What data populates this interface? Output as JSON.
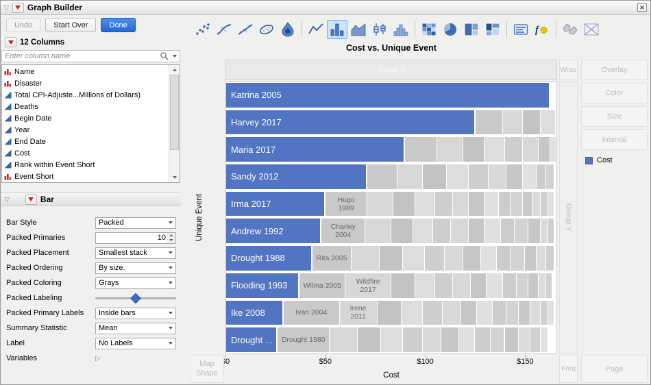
{
  "window": {
    "title": "Graph Builder"
  },
  "glyphs": {
    "open_disclosure": "▽",
    "collapsed_disclosure": "▷"
  },
  "toolbar": {
    "undo": "Undo",
    "start_over": "Start Over",
    "done": "Done"
  },
  "palette": {
    "selected": "bar",
    "groups": [
      [
        "points",
        "smoother",
        "line-of-fit",
        "ellipse",
        "contour"
      ],
      [
        "line",
        "bar",
        "area",
        "box-plot",
        "histogram"
      ],
      [
        "heatmap",
        "pie",
        "treemap",
        "mosaic"
      ],
      [
        "caption-box",
        "formula"
      ],
      [
        "map-shapes",
        "parallel-plot"
      ]
    ]
  },
  "columns_panel": {
    "header": "12 Columns",
    "search_placeholder": "Enter column name",
    "items": [
      {
        "label": "Name",
        "type": "nominal"
      },
      {
        "label": "Disaster",
        "type": "nominal"
      },
      {
        "label": "Total CPI-Adjuste...Millions of Dollars)",
        "type": "continuous"
      },
      {
        "label": "Deaths",
        "type": "continuous"
      },
      {
        "label": "Begin Date",
        "type": "continuous"
      },
      {
        "label": "Year",
        "type": "continuous"
      },
      {
        "label": "End Date",
        "type": "continuous"
      },
      {
        "label": "Cost",
        "type": "continuous"
      },
      {
        "label": "Rank within Event Short",
        "type": "continuous"
      },
      {
        "label": "Event Short",
        "type": "nominal"
      }
    ]
  },
  "bar_panel": {
    "header": "Bar",
    "rows": [
      {
        "label": "Bar Style",
        "value": "Packed"
      },
      {
        "label": "Packed Primaries",
        "value": "10"
      },
      {
        "label": "Packed Placement",
        "value": "Smallest stack"
      },
      {
        "label": "Packed Ordering",
        "value": "By size."
      },
      {
        "label": "Packed Coloring",
        "value": "Grays"
      },
      {
        "label": "Packed Labeling",
        "value": ""
      },
      {
        "label": "Packed Primary Labels",
        "value": "Inside bars"
      },
      {
        "label": "Summary Statistic",
        "value": "Mean"
      },
      {
        "label": "Label",
        "value": "No Labels"
      },
      {
        "label": "Variables",
        "value": ""
      }
    ]
  },
  "zones": {
    "group_x": "Group X",
    "wrap": "Wrap",
    "overlay": "Overlay",
    "color": "Color",
    "size": "Size",
    "interval": "Interval",
    "group_y": "Group Y",
    "map_shape": "Map\nShape",
    "freq": "Freq",
    "page": "Page"
  },
  "legend": {
    "label": "Cost",
    "swatch": "#5174c3"
  },
  "colors": {
    "bar_blue": "#5174c3",
    "done_blue": "#2268d2",
    "selected_tool_bg": "#cfe4f7",
    "selected_tool_border": "#74a7dd"
  },
  "chart_data": {
    "type": "bar",
    "orientation": "horizontal",
    "title": "Cost vs. Unique Event",
    "xlabel": "Cost",
    "ylabel": "Unique Event",
    "xlim": [
      0,
      166
    ],
    "xticks": [
      {
        "value": 0,
        "label": "$0"
      },
      {
        "value": 50,
        "label": "$50"
      },
      {
        "value": 100,
        "label": "$100"
      },
      {
        "value": 150,
        "label": "$150"
      }
    ],
    "gray_palette": [
      "#c9c9c9",
      "#d7d7d7",
      "#c3c3c3",
      "#dddddd",
      "#cecece",
      "#d8d8d8",
      "#c6c6c6",
      "#e0e0e0",
      "#cccccc",
      "#d2d2d2",
      "#c8c8c8",
      "#dbdbdb",
      "#d0d0d0",
      "#e2e2e2"
    ],
    "rows": [
      {
        "name": "Katrina 2005",
        "value": 163,
        "packed": []
      },
      {
        "name": "Harvey 2017",
        "value": 125.5,
        "packed": [
          {
            "value": 13.5
          },
          {
            "value": 10
          },
          {
            "value": 9
          },
          {
            "value": 7.5
          }
        ]
      },
      {
        "name": "Maria 2017",
        "value": 90,
        "packed": [
          {
            "value": 16
          },
          {
            "value": 13
          },
          {
            "value": 11
          },
          {
            "value": 10
          },
          {
            "value": 9
          },
          {
            "value": 8
          },
          {
            "value": 6
          },
          {
            "value": 3
          }
        ]
      },
      {
        "name": "Sandy 2012",
        "value": 71,
        "packed": [
          {
            "value": 15
          },
          {
            "value": 13
          },
          {
            "value": 12
          },
          {
            "value": 11
          },
          {
            "value": 10
          },
          {
            "value": 9
          },
          {
            "value": 8
          },
          {
            "value": 7
          },
          {
            "value": 5
          },
          {
            "value": 4
          }
        ]
      },
      {
        "name": "Irma 2017",
        "value": 50,
        "packed": [
          {
            "value": 21,
            "label": "Hugo\n1989"
          },
          {
            "value": 13
          },
          {
            "value": 11
          },
          {
            "value": 10
          },
          {
            "value": 9
          },
          {
            "value": 8
          },
          {
            "value": 8
          },
          {
            "value": 7
          },
          {
            "value": 6
          },
          {
            "value": 6
          },
          {
            "value": 5
          },
          {
            "value": 4
          },
          {
            "value": 4
          },
          {
            "value": 3
          }
        ]
      },
      {
        "name": "Andrew 1992",
        "value": 48,
        "packed": [
          {
            "value": 22,
            "label": "Charley\n2004"
          },
          {
            "value": 13
          },
          {
            "value": 11
          },
          {
            "value": 10
          },
          {
            "value": 9
          },
          {
            "value": 9
          },
          {
            "value": 8
          },
          {
            "value": 8
          },
          {
            "value": 7
          },
          {
            "value": 7
          },
          {
            "value": 6
          },
          {
            "value": 4
          },
          {
            "value": 3
          }
        ]
      },
      {
        "name": "Drought 1988",
        "value": 43.5,
        "packed": [
          {
            "value": 19.5,
            "label": "Rita 2005"
          },
          {
            "value": 14
          },
          {
            "value": 12
          },
          {
            "value": 11
          },
          {
            "value": 10
          },
          {
            "value": 9
          },
          {
            "value": 9
          },
          {
            "value": 8
          },
          {
            "value": 7
          },
          {
            "value": 7
          },
          {
            "value": 6
          },
          {
            "value": 5
          },
          {
            "value": 4
          }
        ]
      },
      {
        "name": "Flooding 1993",
        "value": 37,
        "packed": [
          {
            "value": 23,
            "label": "Wilma 2005"
          },
          {
            "value": 23,
            "label": "Wildfire\n2017"
          },
          {
            "value": 12
          },
          {
            "value": 10
          },
          {
            "value": 9
          },
          {
            "value": 9
          },
          {
            "value": 8
          },
          {
            "value": 8
          },
          {
            "value": 7
          },
          {
            "value": 6
          },
          {
            "value": 5
          },
          {
            "value": 4
          },
          {
            "value": 3
          }
        ]
      },
      {
        "name": "Ike 2008",
        "value": 29,
        "packed": [
          {
            "value": 28,
            "label": "Ivan 2004"
          },
          {
            "value": 19,
            "label": "Irene\n2011"
          },
          {
            "value": 12
          },
          {
            "value": 11
          },
          {
            "value": 10
          },
          {
            "value": 9
          },
          {
            "value": 8
          },
          {
            "value": 8
          },
          {
            "value": 7
          },
          {
            "value": 6
          },
          {
            "value": 6
          },
          {
            "value": 5
          },
          {
            "value": 4
          },
          {
            "value": 3
          }
        ]
      },
      {
        "name": "Drought ...",
        "value": 26,
        "packed": [
          {
            "value": 26,
            "label": "Drought 1980"
          },
          {
            "value": 14
          },
          {
            "value": 12
          },
          {
            "value": 11
          },
          {
            "value": 10
          },
          {
            "value": 9
          },
          {
            "value": 9
          },
          {
            "value": 8
          },
          {
            "value": 8
          },
          {
            "value": 7
          },
          {
            "value": 7
          },
          {
            "value": 6
          },
          {
            "value": 5
          },
          {
            "value": 4
          }
        ]
      }
    ]
  }
}
